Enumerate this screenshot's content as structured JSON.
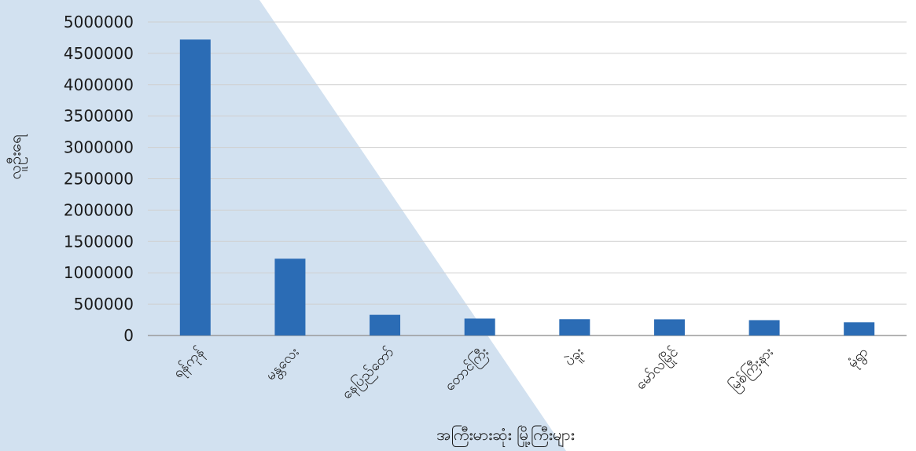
{
  "chart_data": {
    "type": "bar",
    "categories": [
      "ရန်ကုန်",
      "မန္တလေး",
      "နေပြည်တော်",
      "တောင်ကြီး",
      "ပဲခူး",
      "မော်လမြိုင်",
      "မြစ်ကြီးနား",
      "မုံရွာ"
    ],
    "values": [
      4720000,
      1225000,
      330000,
      270000,
      260000,
      258000,
      245000,
      210000
    ],
    "title": "",
    "xlabel": "အကြီးမားဆုံး မြို့ကြီးများ",
    "ylabel": "လူဦးရေ",
    "ylim": [
      0,
      5000000
    ],
    "yticks": [
      0,
      500000,
      1000000,
      1500000,
      2000000,
      2500000,
      3000000,
      3500000,
      4000000,
      4500000,
      5000000
    ],
    "grid": true,
    "legend": "none"
  },
  "colors": {
    "bar": "#2b6cb5",
    "background_triangle": "#d2e1f0",
    "gridline": "#cfcfcf",
    "axis": "#9a9a9a"
  }
}
